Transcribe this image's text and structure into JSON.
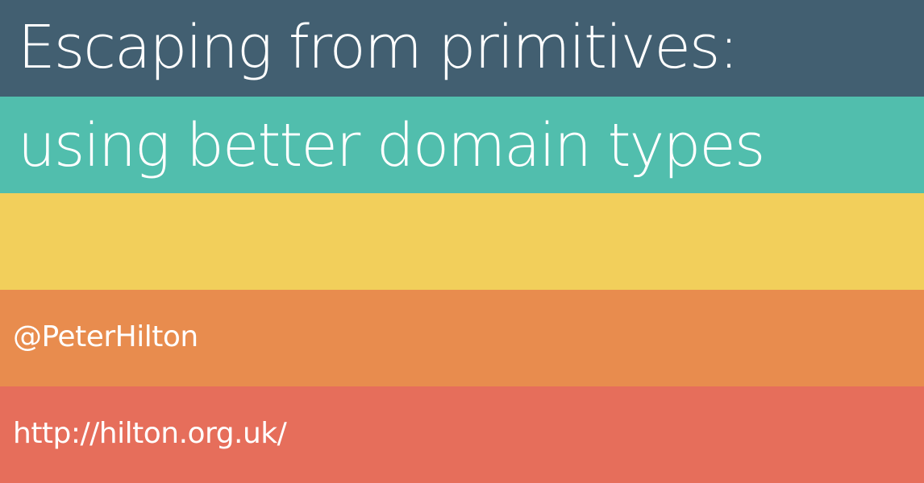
{
  "slide": {
    "title_line_1": "Escaping from primitives:",
    "title_line_2": "using better domain types",
    "handle": "@PeterHilton",
    "url": "http://hilton.org.uk/"
  },
  "colors": {
    "band_1": "#425f71",
    "band_2": "#51bead",
    "band_3": "#f2cf5b",
    "band_4": "#e88c4e",
    "band_5": "#e66e5b",
    "text": "#ffffff"
  }
}
